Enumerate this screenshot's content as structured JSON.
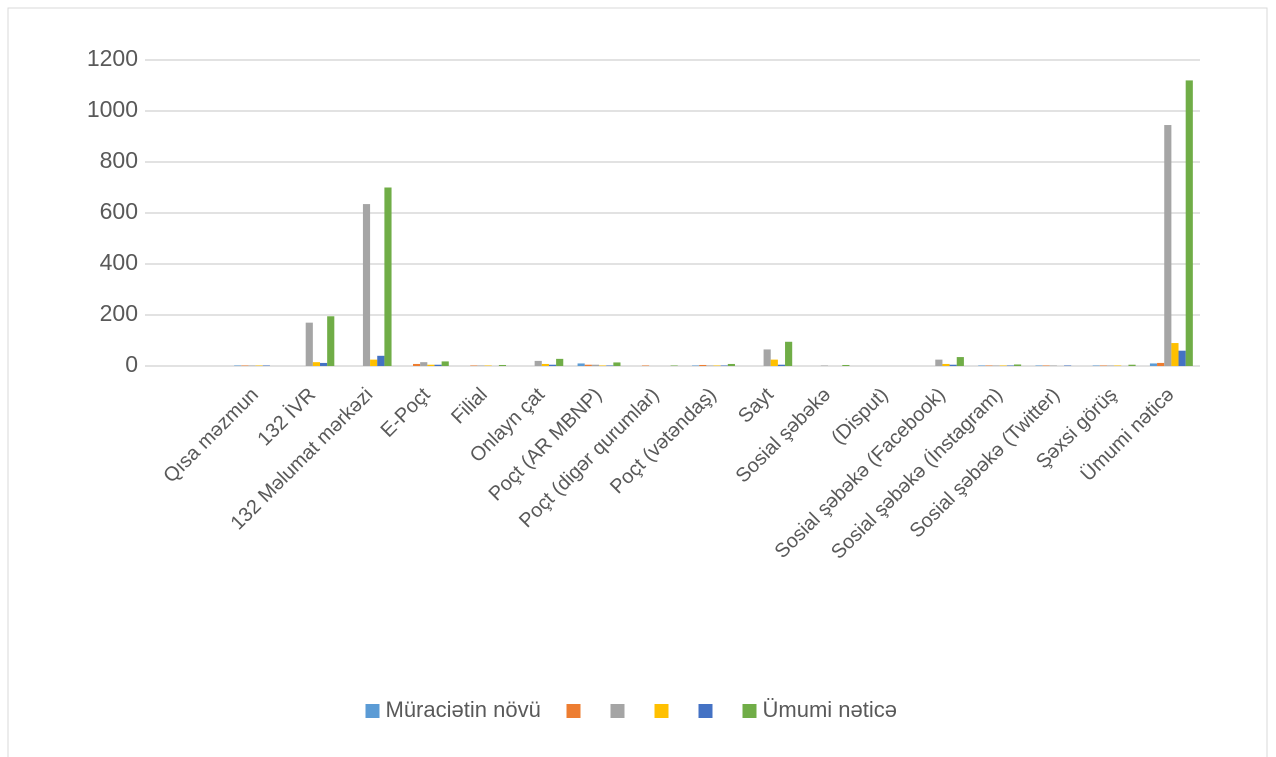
{
  "chart_data": {
    "type": "bar",
    "categories": [
      "Qısa məzmun",
      "132 İVR",
      "132 Məlumat mərkəzi",
      "E-Poçt",
      "Filial",
      "Onlayn çat",
      "Poçt (AR MBNP)",
      "Poçt (digər qurumlar)",
      "Poçt (vətəndaş)",
      "Sayt",
      "Sosial şəbəkə",
      "(Disput)",
      "Sosial şəbəkə (Facebook)",
      "Sosial şəbəkə (İnstagram)",
      "Sosial şəbəkə (Twitter)",
      "Şəxsi görüş",
      "Ümumi nəticə"
    ],
    "series": [
      {
        "name": "Müraciətin növü",
        "color": "#5b9bd5",
        "values": [
          2,
          0,
          0,
          0,
          0,
          0,
          10,
          0,
          2,
          0,
          0,
          0,
          0,
          2,
          2,
          2,
          10
        ]
      },
      {
        "color": "#ed7d31",
        "values": [
          2,
          0,
          0,
          8,
          2,
          0,
          5,
          2,
          4,
          0,
          0,
          0,
          0,
          2,
          2,
          2,
          12
        ]
      },
      {
        "color": "#a5a5a5",
        "values": [
          2,
          170,
          635,
          15,
          2,
          20,
          5,
          0,
          2,
          65,
          2,
          0,
          25,
          2,
          2,
          2,
          945
        ]
      },
      {
        "color": "#ffc000",
        "values": [
          2,
          15,
          25,
          5,
          2,
          8,
          2,
          0,
          2,
          25,
          0,
          0,
          8,
          2,
          0,
          2,
          90
        ]
      },
      {
        "color": "#4472c4",
        "values": [
          2,
          12,
          40,
          5,
          0,
          5,
          2,
          0,
          2,
          5,
          0,
          0,
          5,
          2,
          2,
          0,
          60
        ]
      },
      {
        "name": "Ümumi nəticə",
        "color": "#70ad47",
        "values": [
          0,
          195,
          700,
          18,
          4,
          28,
          14,
          2,
          8,
          95,
          4,
          0,
          35,
          6,
          0,
          5,
          1120
        ]
      }
    ],
    "ylim": [
      0,
      1200
    ],
    "yticks": [
      0,
      200,
      400,
      600,
      800,
      1000,
      1200
    ],
    "grid": true,
    "legend": "bottom"
  }
}
